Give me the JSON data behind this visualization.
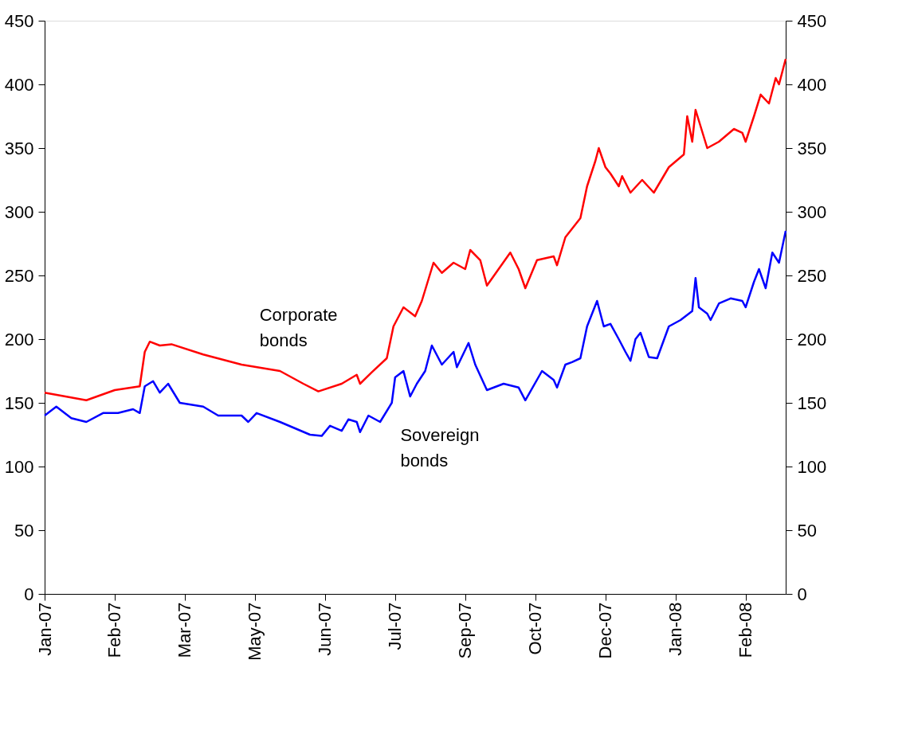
{
  "chart_data": {
    "type": "line",
    "xlim": [
      "2007-01-01",
      "2008-03-20"
    ],
    "xticks": [
      {
        "value": "2007-01-01",
        "label": "Jan-07"
      },
      {
        "value": "2007-02-12",
        "label": "Feb-07"
      },
      {
        "value": "2007-03-26",
        "label": "Mar-07"
      },
      {
        "value": "2007-05-07",
        "label": "May-07"
      },
      {
        "value": "2007-06-18",
        "label": "Jun-07"
      },
      {
        "value": "2007-07-30",
        "label": "Jul-07"
      },
      {
        "value": "2007-09-10",
        "label": "Sep-07"
      },
      {
        "value": "2007-10-22",
        "label": "Oct-07"
      },
      {
        "value": "2007-12-03",
        "label": "Dec-07"
      },
      {
        "value": "2008-01-14",
        "label": "Jan-08"
      },
      {
        "value": "2008-02-25",
        "label": "Feb-08"
      }
    ],
    "ylim": [
      0,
      450
    ],
    "yticks": [
      0,
      50,
      100,
      150,
      200,
      250,
      300,
      350,
      400,
      450
    ],
    "y2lim": [
      0,
      450
    ],
    "y2ticks": [
      0,
      50,
      100,
      150,
      200,
      250,
      300,
      350,
      400,
      450
    ],
    "grid": false,
    "marker": "none",
    "line_style": "solid",
    "annotations": [
      "Corporate bonds",
      "Sovereign bonds"
    ],
    "series": [
      {
        "color": "#ff0000",
        "x": [
          "2007-01-01",
          "2007-01-26",
          "2007-02-12",
          "2007-02-27",
          "2007-03-02",
          "2007-03-05",
          "2007-03-11",
          "2007-03-18",
          "2007-04-06",
          "2007-04-29",
          "2007-05-22",
          "2007-06-05",
          "2007-06-14",
          "2007-06-28",
          "2007-07-07",
          "2007-07-09",
          "2007-07-16",
          "2007-07-25",
          "2007-07-29",
          "2007-08-04",
          "2007-08-11",
          "2007-08-15",
          "2007-08-22",
          "2007-08-27",
          "2007-09-03",
          "2007-09-10",
          "2007-09-13",
          "2007-09-19",
          "2007-09-23",
          "2007-10-07",
          "2007-10-12",
          "2007-10-16",
          "2007-10-23",
          "2007-11-02",
          "2007-11-04",
          "2007-11-09",
          "2007-11-18",
          "2007-11-22",
          "2007-11-27",
          "2007-11-29",
          "2007-12-03",
          "2007-12-06",
          "2007-12-11",
          "2007-12-13",
          "2007-12-18",
          "2007-12-25",
          "2008-01-01",
          "2008-01-10",
          "2008-01-19",
          "2008-01-21",
          "2008-01-24",
          "2008-01-26",
          "2008-02-02",
          "2008-02-09",
          "2008-02-18",
          "2008-02-23",
          "2008-02-25",
          "2008-03-01",
          "2008-03-05",
          "2008-03-10",
          "2008-03-14",
          "2008-03-16",
          "2008-03-20"
        ],
        "values": [
          158,
          152,
          160,
          163,
          190,
          198,
          195,
          196,
          188,
          180,
          175,
          165,
          159,
          165,
          172,
          165,
          174,
          185,
          210,
          225,
          218,
          230,
          260,
          252,
          260,
          255,
          270,
          262,
          242,
          268,
          255,
          240,
          262,
          265,
          258,
          280,
          295,
          320,
          340,
          350,
          335,
          330,
          320,
          328,
          315,
          325,
          315,
          335,
          345,
          375,
          355,
          380,
          350,
          355,
          365,
          362,
          355,
          375,
          392,
          385,
          405,
          400,
          420
        ]
      },
      {
        "color": "#0000ff",
        "x": [
          "2007-01-01",
          "2007-01-08",
          "2007-01-17",
          "2007-01-26",
          "2007-02-05",
          "2007-02-14",
          "2007-02-23",
          "2007-02-27",
          "2007-03-02",
          "2007-03-07",
          "2007-03-11",
          "2007-03-16",
          "2007-03-23",
          "2007-04-06",
          "2007-04-15",
          "2007-04-29",
          "2007-05-03",
          "2007-05-08",
          "2007-05-22",
          "2007-05-31",
          "2007-06-09",
          "2007-06-16",
          "2007-06-21",
          "2007-06-28",
          "2007-07-02",
          "2007-07-07",
          "2007-07-09",
          "2007-07-14",
          "2007-07-21",
          "2007-07-28",
          "2007-07-30",
          "2007-08-04",
          "2007-08-08",
          "2007-08-12",
          "2007-08-17",
          "2007-08-21",
          "2007-08-27",
          "2007-09-03",
          "2007-09-05",
          "2007-09-12",
          "2007-09-16",
          "2007-09-23",
          "2007-10-03",
          "2007-10-12",
          "2007-10-16",
          "2007-10-26",
          "2007-11-02",
          "2007-11-04",
          "2007-11-09",
          "2007-11-13",
          "2007-11-18",
          "2007-11-22",
          "2007-11-28",
          "2007-12-02",
          "2007-12-06",
          "2007-12-11",
          "2007-12-15",
          "2007-12-18",
          "2007-12-21",
          "2007-12-24",
          "2007-12-29",
          "2008-01-03",
          "2008-01-10",
          "2008-01-17",
          "2008-01-24",
          "2008-01-26",
          "2008-01-28",
          "2008-02-02",
          "2008-02-04",
          "2008-02-09",
          "2008-02-16",
          "2008-02-23",
          "2008-02-25",
          "2008-03-01",
          "2008-03-04",
          "2008-03-08",
          "2008-03-12",
          "2008-03-16",
          "2008-03-20"
        ],
        "values": [
          140,
          147,
          138,
          135,
          142,
          142,
          145,
          142,
          163,
          167,
          158,
          165,
          150,
          147,
          140,
          140,
          135,
          142,
          135,
          130,
          125,
          124,
          132,
          128,
          137,
          135,
          127,
          140,
          135,
          150,
          170,
          175,
          155,
          165,
          175,
          195,
          180,
          190,
          178,
          197,
          180,
          160,
          165,
          162,
          152,
          175,
          168,
          162,
          180,
          182,
          185,
          210,
          230,
          210,
          212,
          200,
          190,
          183,
          200,
          205,
          186,
          185,
          210,
          215,
          222,
          248,
          225,
          220,
          215,
          228,
          232,
          230,
          225,
          245,
          255,
          240,
          268,
          260,
          285
        ]
      }
    ]
  }
}
